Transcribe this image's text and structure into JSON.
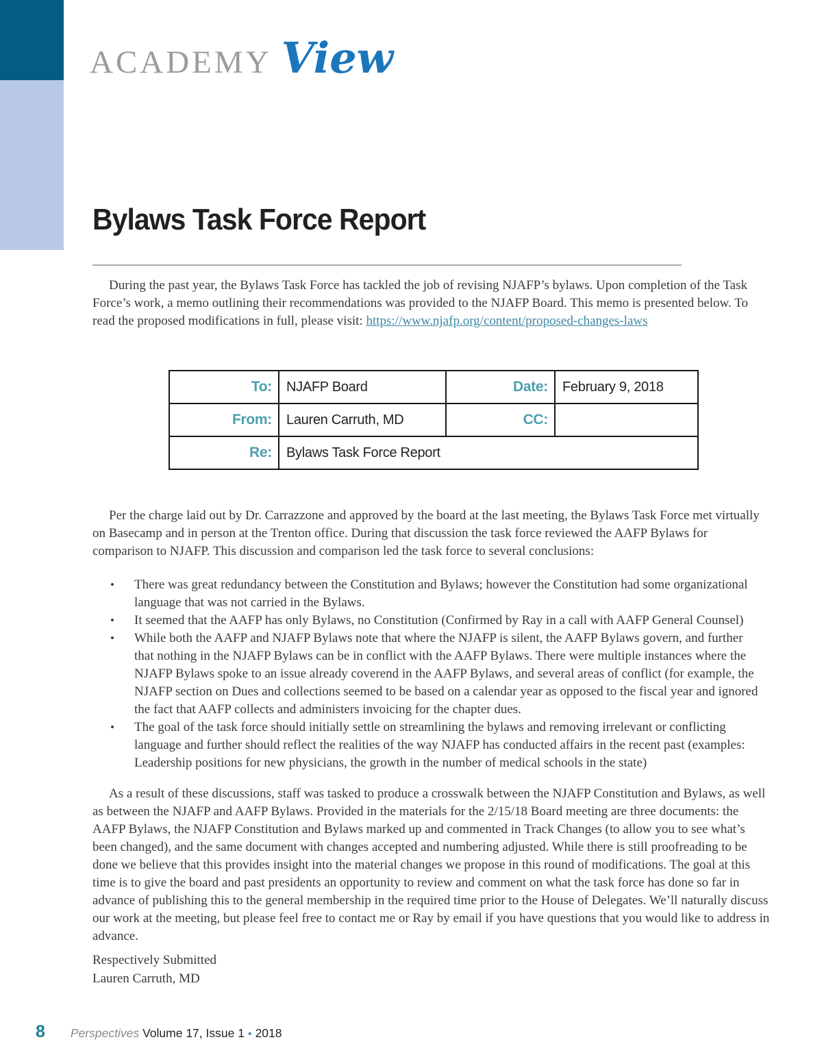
{
  "header": {
    "brand_academy": "ACADEMY",
    "brand_view": "View"
  },
  "article": {
    "title": "Bylaws Task Force Report",
    "intro_text": "During the past year, the Bylaws Task Force has tackled the job of revising NJAFP’s bylaws. Upon completion of the Task Force’s work, a memo outlining their recommendations was provided to the NJAFP Board. This memo is presented below. To read the proposed modifications in full, please visit: ",
    "intro_link": "https://www.njafp.org/content/proposed-changes-laws"
  },
  "memo": {
    "to_label": "To:",
    "to_value": "NJAFP Board",
    "date_label": "Date:",
    "date_value": "February 9, 2018",
    "from_label": "From:",
    "from_value": "Lauren Carruth, MD",
    "cc_label": "CC:",
    "cc_value": "",
    "re_label": "Re:",
    "re_value": "Bylaws Task Force Report"
  },
  "body": {
    "para1": "Per the charge laid out by Dr. Carrazzone and approved by the board at the last meeting, the Bylaws Task Force met virtually on Basecamp and in person at the Trenton office. During that discussion the task force reviewed the AAFP Bylaws for comparison to NJAFP. This discussion and comparison led the task force to several conclusions:",
    "bullets": [
      "There was great redundancy between the Constitution and Bylaws; however the Constitution had some organizational language that was not carried in the Bylaws.",
      "It seemed that the AAFP has only Bylaws, no Constitution (Confirmed by Ray in a call with AAFP General Counsel)",
      "While both the AAFP and NJAFP Bylaws note that where the NJAFP is silent, the AAFP Bylaws govern, and further that nothing in the NJAFP Bylaws can be in conflict with the AAFP Bylaws. There were multiple instances where the NJAFP Bylaws spoke to an issue already coverend in the AAFP Bylaws, and several areas of conflict (for example, the NJAFP section on Dues and collections seemed to be based on a calendar year as opposed to the fiscal year and ignored the fact that AAFP collects and administers invoicing for the chapter dues.",
      "The goal of the task force should initially settle on streamlining the bylaws and removing irrelevant or conflicting language and further should reflect the realities of the way NJAFP has conducted affairs in the recent past (examples: Leadership positions for new physicians, the growth in the number of medical schools in the state)"
    ],
    "para2": "As a result of these discussions, staff was tasked to produce a crosswalk between the NJAFP Constitution and Bylaws, as well as between the NJAFP and AAFP Bylaws. Provided in the materials for the 2/15/18 Board meeting are three documents: the AAFP Bylaws, the NJAFP Constitution and Bylaws marked up and commented in Track Changes (to allow you to see what’s been changed), and the same document with changes accepted and numbering adjusted. While there is still proofreading to be done we believe that this provides insight into the material changes we propose in this round of modifications. The goal at this time is to give the board and past presidents an opportunity to review and comment on what the task force has done so far in advance of publishing this to the general membership in the required time prior to the House of Delegates. We’ll naturally discuss our work at the meeting, but please feel free to contact me or Ray by email if you have questions that you would like to address in advance.",
    "signature_line1": "Respectively Submitted",
    "signature_line2": "Lauren Carruth, MD"
  },
  "footer": {
    "page_number": "8",
    "magazine": "Perspectives",
    "issue": "Volume 17, Issue 1",
    "separator": "•",
    "year": "2018"
  },
  "colors": {
    "bar_dark": "#045c85",
    "bar_light": "#b8c9e5",
    "brand_gray": "#9b9b9d",
    "brand_blue": "#1b76bc",
    "memo_label_teal": "#4c9faf",
    "link_teal": "#3e87a5",
    "footer_page_teal": "#1e7f96",
    "footer_dot_blue": "#4a90c4"
  }
}
